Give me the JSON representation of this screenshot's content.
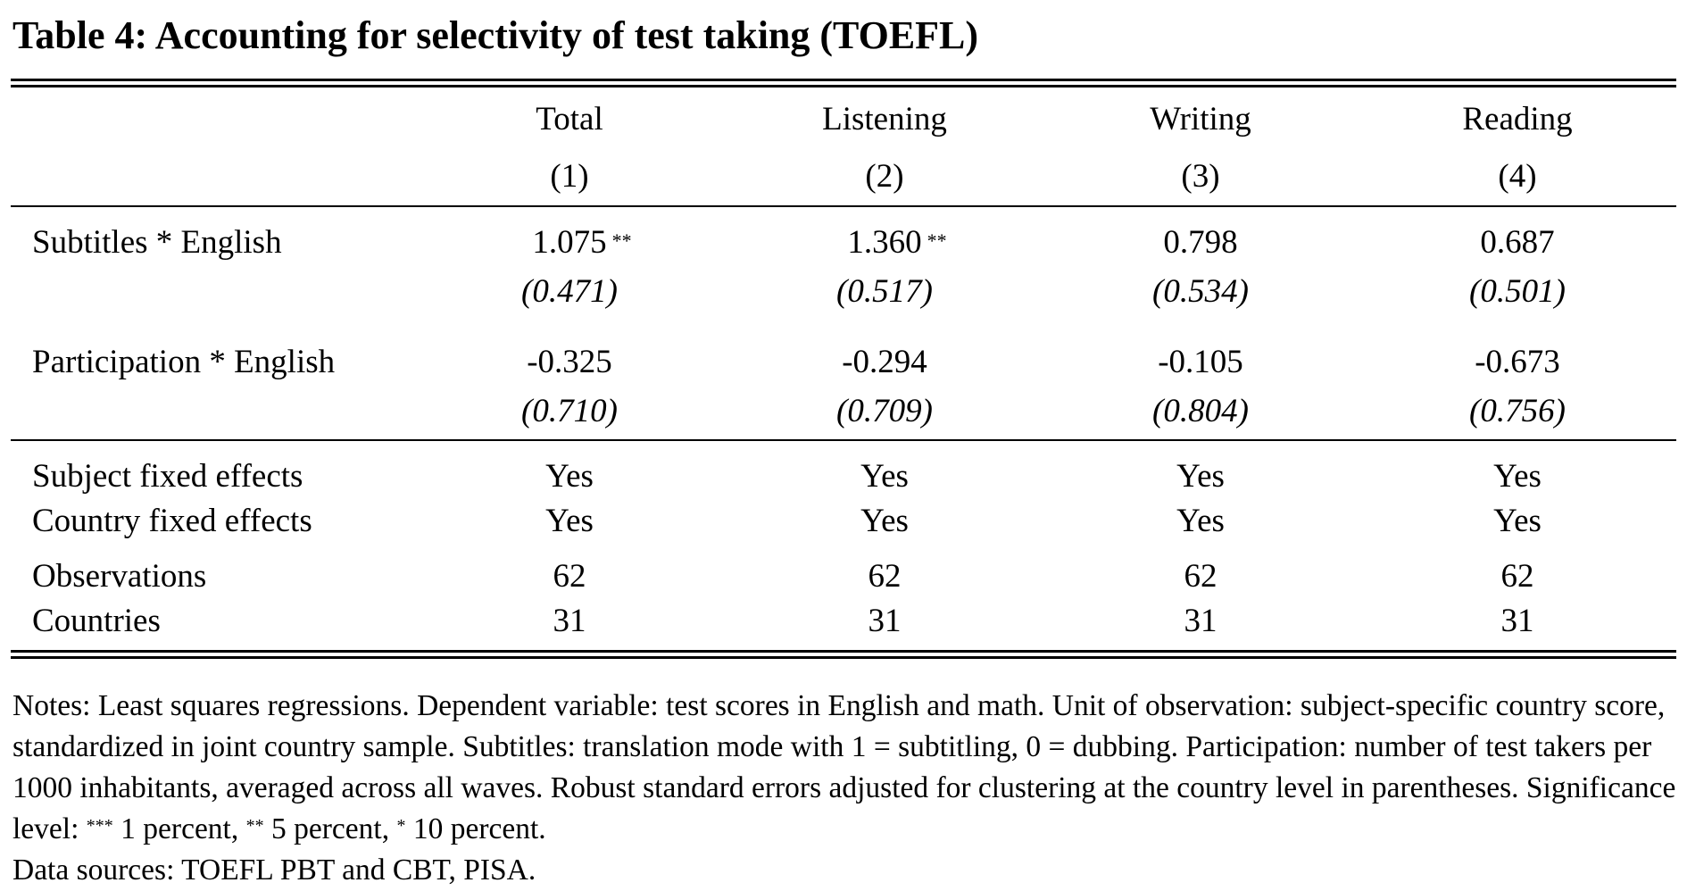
{
  "title": "Table 4: Accounting for selectivity of test taking (TOEFL)",
  "columns": [
    {
      "name": "Total",
      "num": "(1)"
    },
    {
      "name": "Listening",
      "num": "(2)"
    },
    {
      "name": "Writing",
      "num": "(3)"
    },
    {
      "name": "Reading",
      "num": "(4)"
    }
  ],
  "coef_rows": [
    {
      "label": "Subtitles * English",
      "coef": [
        "1.075",
        "1.360",
        "0.798",
        "0.687"
      ],
      "stars": [
        "**",
        "**",
        "",
        ""
      ],
      "se": [
        "(0.471)",
        "(0.517)",
        "(0.534)",
        "(0.501)"
      ]
    },
    {
      "label": "Participation * English",
      "coef": [
        "-0.325",
        "-0.294",
        "-0.105",
        "-0.673"
      ],
      "stars": [
        "",
        "",
        "",
        ""
      ],
      "se": [
        "(0.710)",
        "(0.709)",
        "(0.804)",
        "(0.756)"
      ]
    }
  ],
  "stat_rows": [
    {
      "label": "Subject fixed effects",
      "values": [
        "Yes",
        "Yes",
        "Yes",
        "Yes"
      ]
    },
    {
      "label": "Country fixed effects",
      "values": [
        "Yes",
        "Yes",
        "Yes",
        "Yes"
      ]
    },
    {
      "label": "Observations",
      "values": [
        "62",
        "62",
        "62",
        "62"
      ]
    },
    {
      "label": "Countries",
      "values": [
        "31",
        "31",
        "31",
        "31"
      ]
    }
  ],
  "notes": {
    "part1": "Notes: Least squares regressions. Dependent variable: test scores in English and math. Unit of observation: subject-specific country score, standardized in joint country sample. Subtitles: translation mode with 1 = subtitling, 0 = dubbing. Participation: number of test takers per 1000 inhabitants, averaged across all waves. Robust standard errors adjusted for clustering at the country level in parentheses. Significance level: ",
    "s3": "***",
    "t3": " 1 percent, ",
    "s2": "**",
    "t2": " 5 percent, ",
    "s1": "*",
    "t1": " 10 percent.",
    "sources": "Data sources: TOEFL PBT and CBT, PISA."
  }
}
